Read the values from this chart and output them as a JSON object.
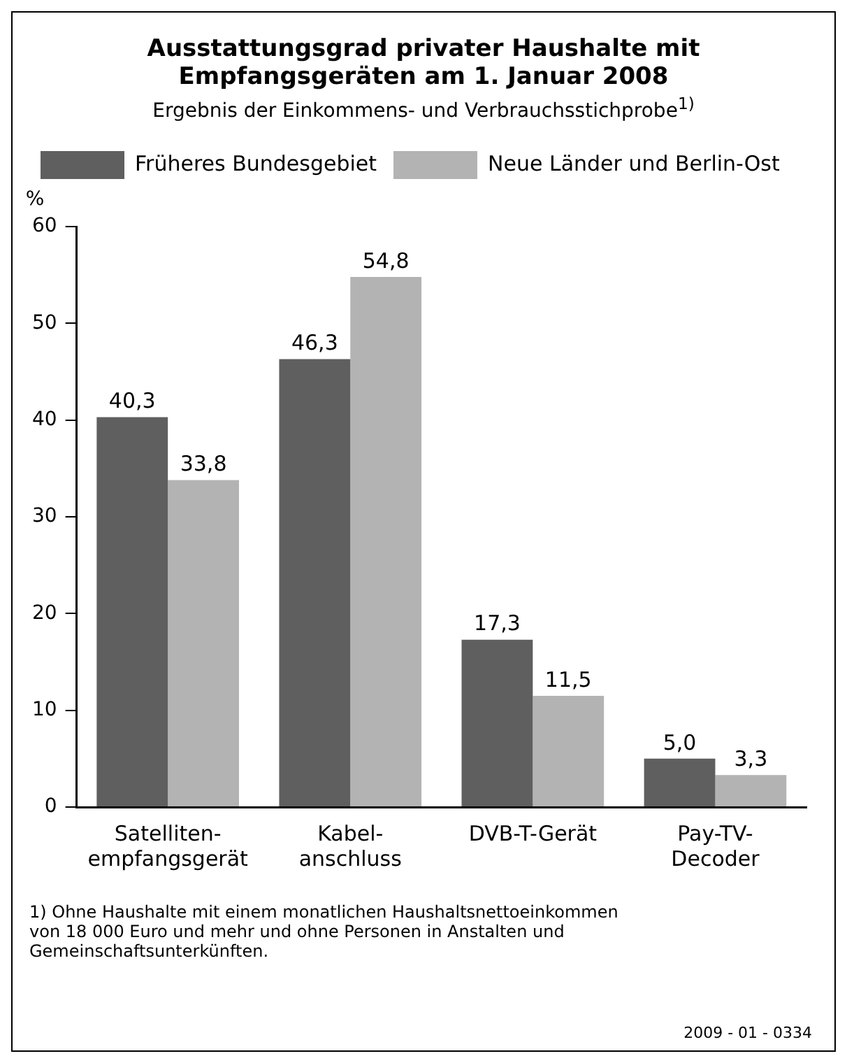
{
  "chart_data": {
    "type": "bar",
    "title": "Ausstattungsgrad privater Haushalte mit Empfangsgeräten am 1. Januar 2008",
    "subtitle": "Ergebnis der Einkommens- und Verbrauchsstichprobe$^{1)}$",
    "ylabel": "%",
    "categories": [
      "Satelliten-\nempfangsgerät",
      "Kabel-\nanschluss",
      "DVB-T-Gerät",
      "Pay-TV-\nDecoder"
    ],
    "series": [
      {
        "name": "Früheres Bundesgebiet",
        "color": "#5f5f5f",
        "values": [
          40.3,
          46.3,
          17.3,
          5.0
        ],
        "value_labels": [
          "40,3",
          "46,3",
          "17,3",
          "5,0"
        ]
      },
      {
        "name": "Neue Länder und Berlin-Ost",
        "color": "#b3b3b3",
        "values": [
          33.8,
          54.8,
          11.5,
          3.3
        ],
        "value_labels": [
          "33,8",
          "54,8",
          "11,5",
          "3,3"
        ]
      }
    ],
    "ylim": [
      0,
      60
    ],
    "yticks": [
      0,
      10,
      20,
      30,
      40,
      50,
      60
    ],
    "grid": false,
    "legend": "top left",
    "annotations": [
      "1) Ohne Haushalte mit einem monatlichen Haushaltsnettoeinkommen von 18 000 Euro und mehr und ohne Personen in Anstalten und Gemeinschaftsunterkünften.",
      "2009 - 01 - 0334"
    ]
  }
}
